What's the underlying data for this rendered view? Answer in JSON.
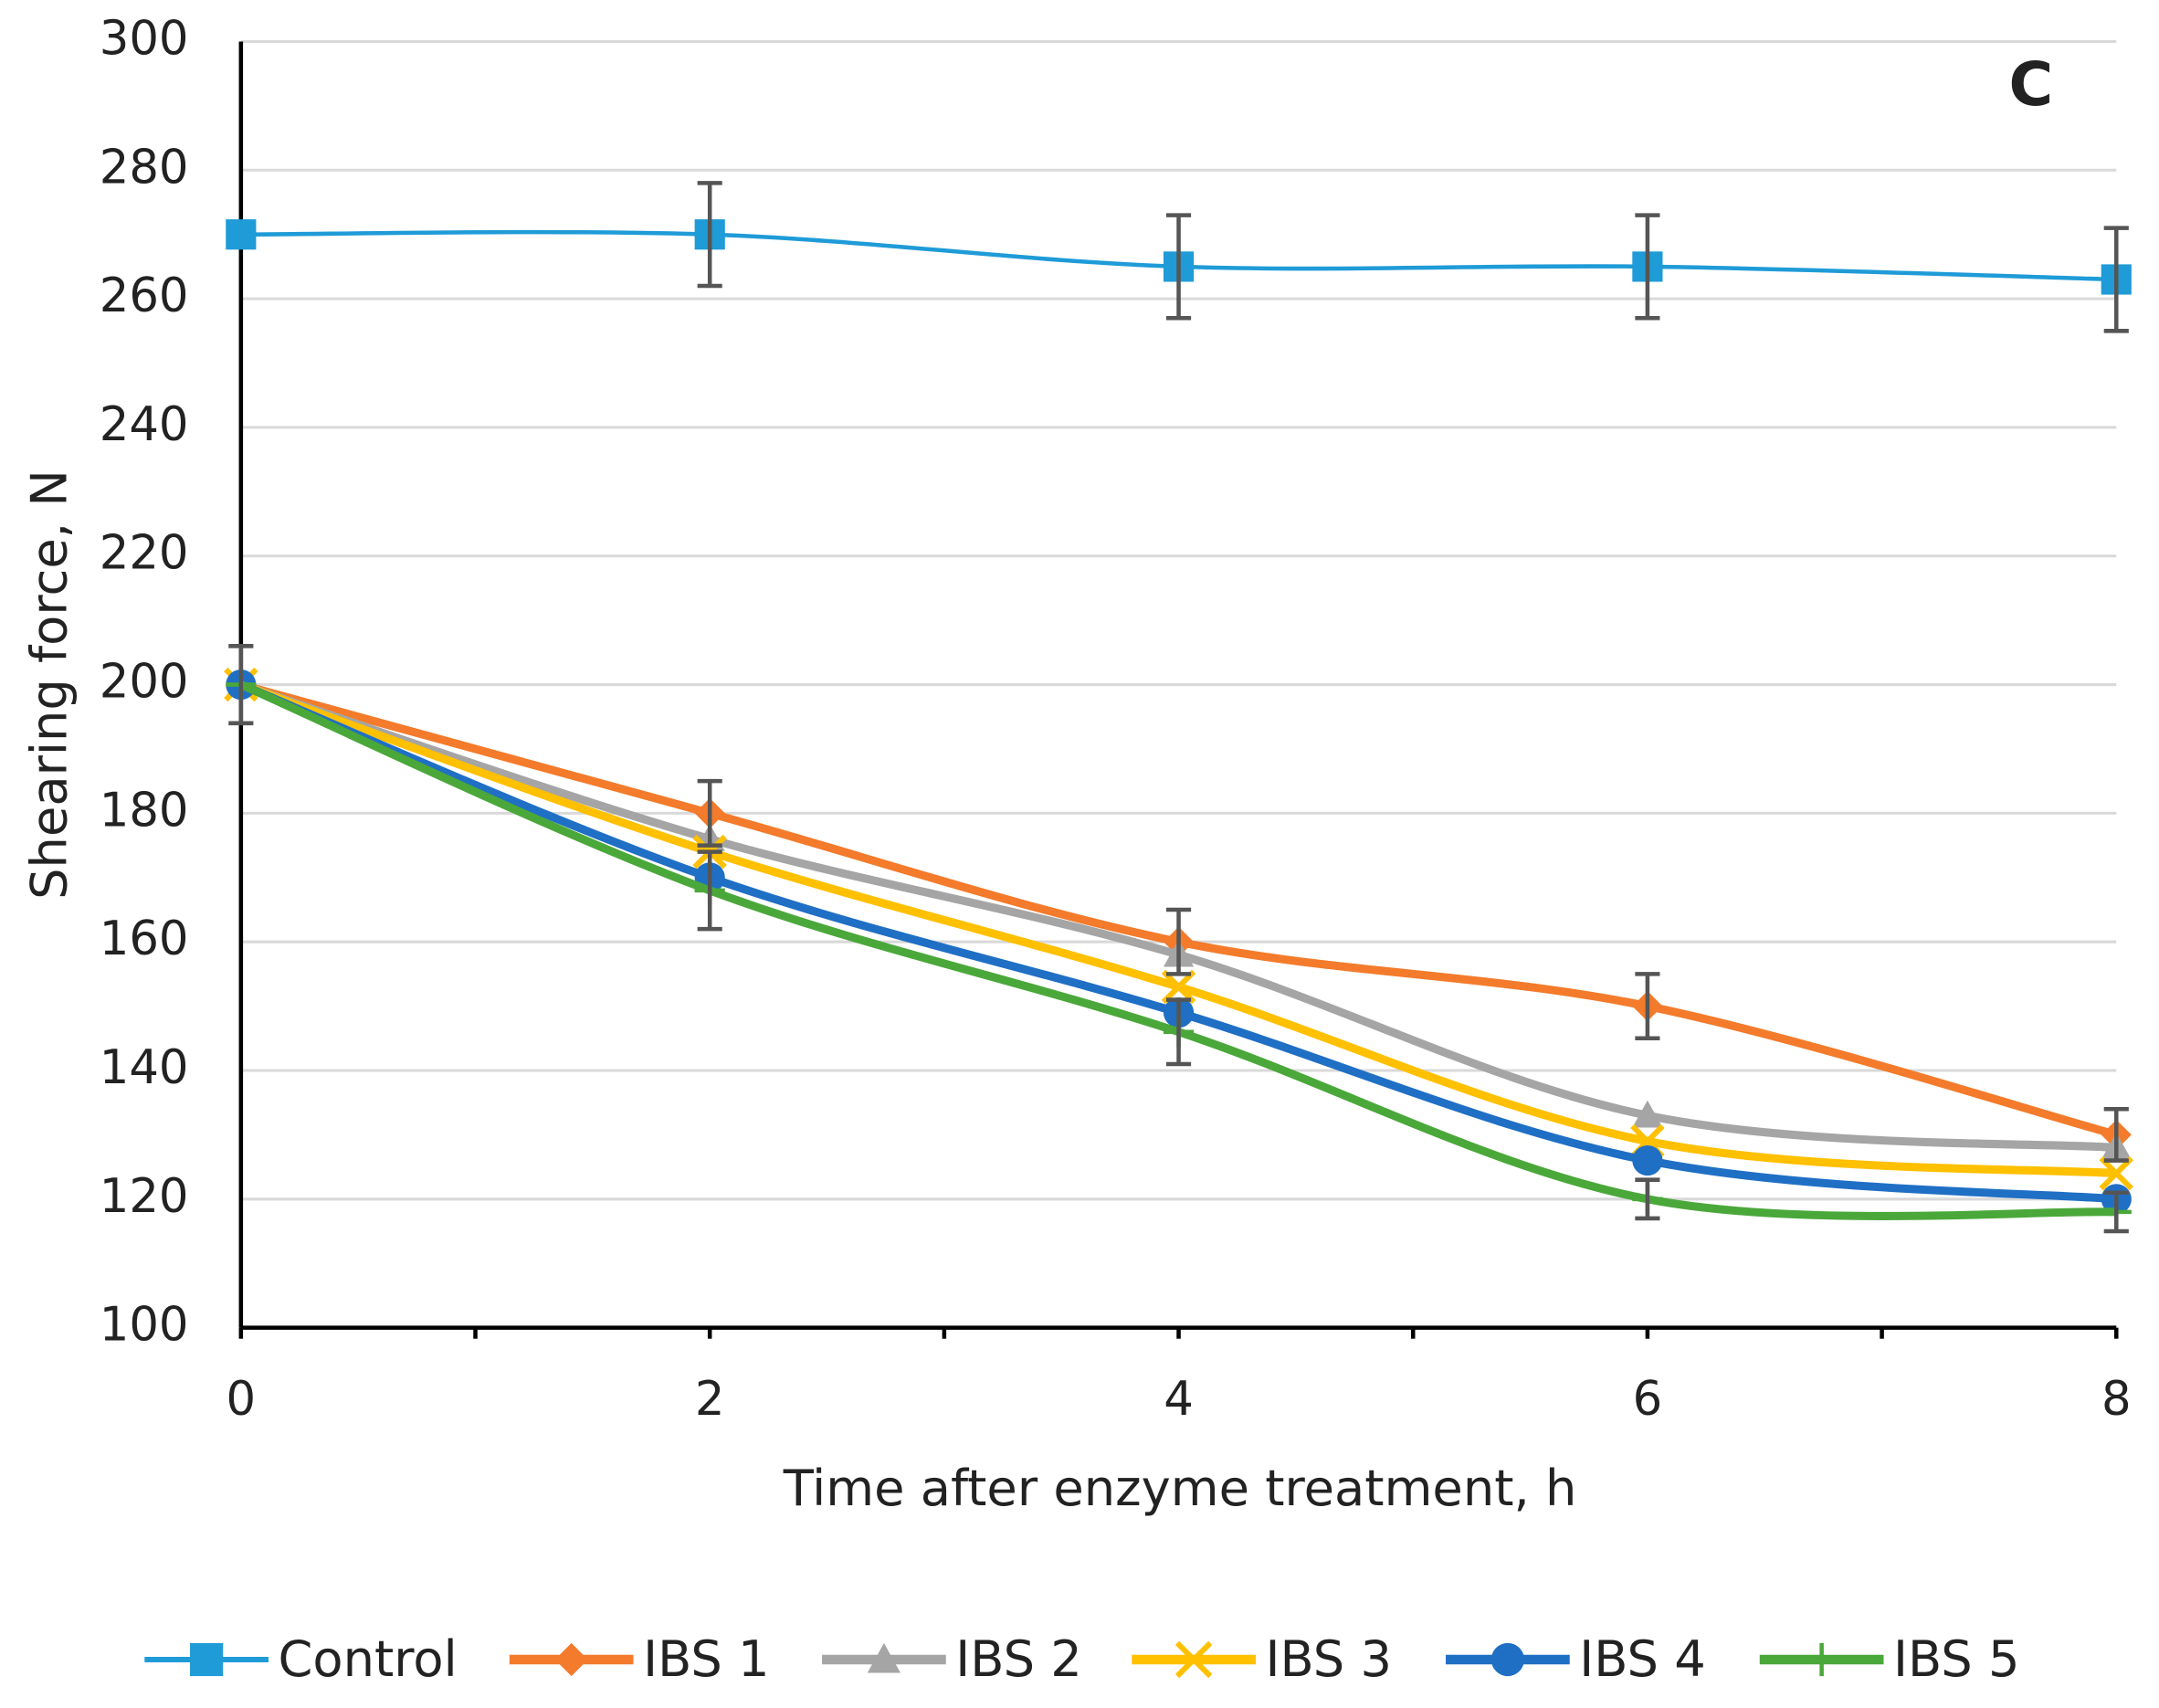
{
  "chart_data": {
    "type": "line",
    "annotation": "C",
    "x_label": "Time after enzyme treatment, h",
    "y_label": "Shearing force, N",
    "x": [
      0,
      2,
      4,
      6,
      8
    ],
    "xlim": [
      0,
      8
    ],
    "xticks": [
      0,
      2,
      4,
      6,
      8
    ],
    "ylim": [
      100,
      300
    ],
    "yticks": [
      100,
      120,
      140,
      160,
      180,
      200,
      220,
      240,
      260,
      280,
      300
    ],
    "grid": true,
    "smooth": true,
    "legend": "bottom",
    "series": [
      {
        "name": "Control",
        "color": "#1f9bd7",
        "marker": "square",
        "values": [
          270,
          270,
          265,
          265,
          263
        ],
        "errors": [
          null,
          8,
          8,
          8,
          8
        ]
      },
      {
        "name": "IBS 1",
        "color": "#f37b2b",
        "marker": "diamond",
        "values": [
          200,
          180,
          160,
          150,
          130
        ],
        "errors": [
          6,
          5,
          5,
          5,
          4
        ]
      },
      {
        "name": "IBS 2",
        "color": "#a5a5a5",
        "marker": "triangle",
        "values": [
          200,
          176,
          158,
          133,
          128
        ]
      },
      {
        "name": "IBS 3",
        "color": "#ffc000",
        "marker": "cross",
        "values": [
          200,
          174,
          153,
          129,
          124
        ]
      },
      {
        "name": "IBS 4",
        "color": "#1f6fc5",
        "marker": "circle",
        "values": [
          200,
          170,
          149,
          126,
          120
        ]
      },
      {
        "name": "IBS 5",
        "color": "#4aa83a",
        "marker": "plus",
        "values": [
          200,
          168,
          146,
          120,
          118
        ],
        "errors": [
          null,
          6,
          5,
          3,
          3
        ]
      }
    ]
  }
}
